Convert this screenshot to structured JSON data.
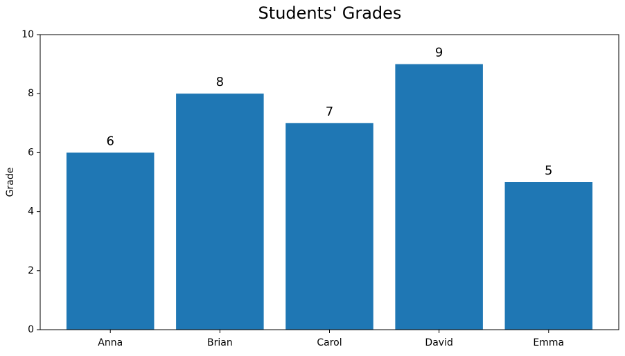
{
  "chart_data": {
    "type": "bar",
    "title": "Students' Grades",
    "ylabel": "Grade",
    "categories": [
      "Anna",
      "Brian",
      "Carol",
      "David",
      "Emma"
    ],
    "values": [
      6,
      8,
      7,
      9,
      5
    ],
    "color": "#1f77b4",
    "ylim": [
      0,
      10
    ],
    "yticks": [
      0,
      2,
      4,
      6,
      8,
      10
    ],
    "grid": false
  }
}
